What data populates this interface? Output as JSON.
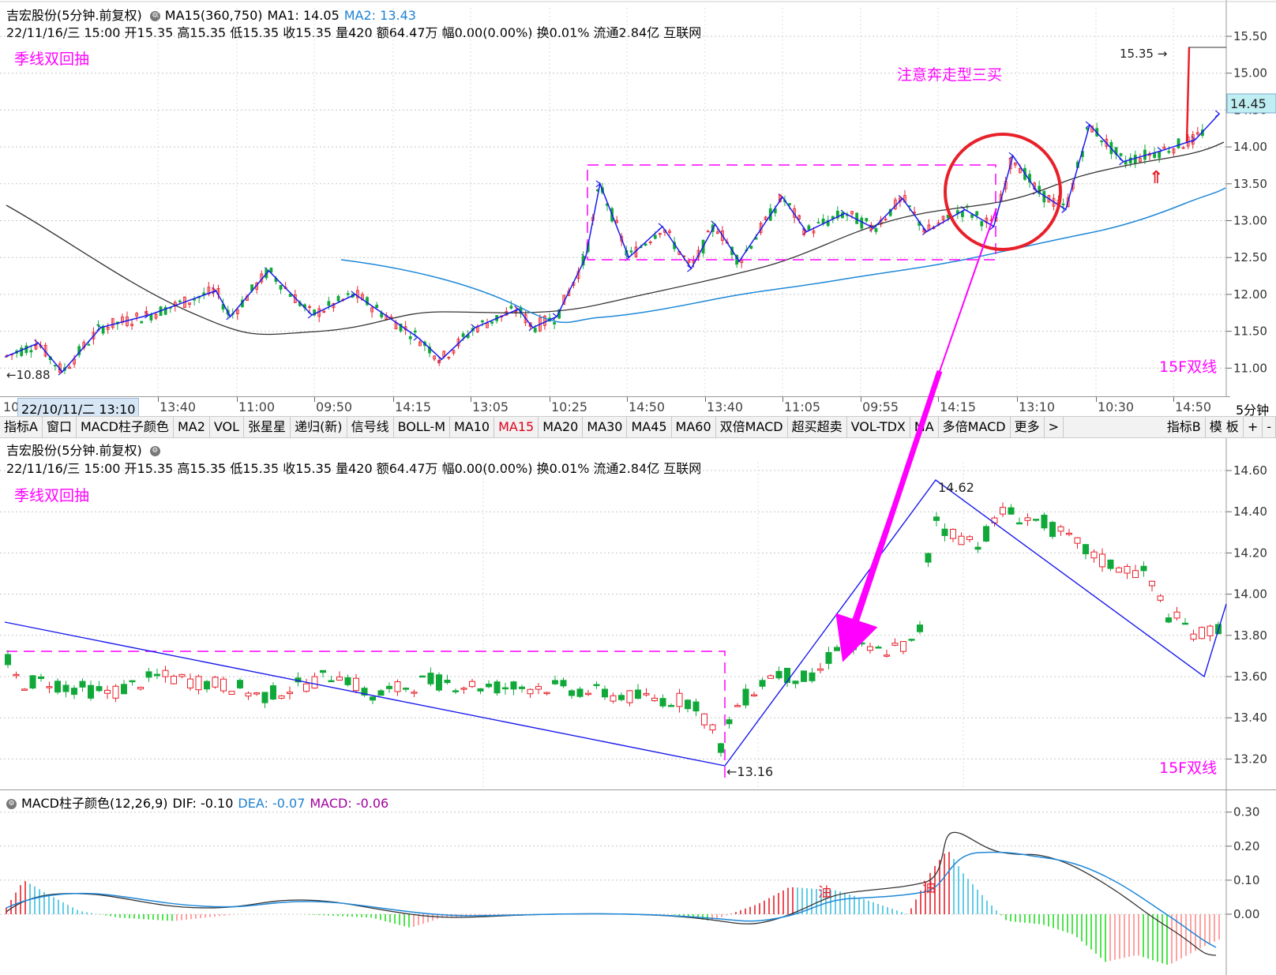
{
  "top_panel": {
    "header_line1": {
      "stock": "吉宏股份(5分钟.前复权)",
      "ma15": "MA15(360,750)",
      "ma1": "MA1: 14.05",
      "ma2": "MA2: 13.43"
    },
    "header_line2": "22/11/16/三 15:00 开15.35 高15.35 低15.35 收15.35 量420 额64.47万 幅0.00(0.00%) 换0.01% 流通2.84亿 互联网",
    "note_left": "季线双回抽",
    "note_top": "注意奔走型三买",
    "note_bottom": "15F双线",
    "price_labels": {
      "low": "10.88",
      "high": "15.35",
      "current": "14.45"
    },
    "y_ticks": [
      "15.50",
      "15.00",
      "14.50",
      "14.00",
      "13.50",
      "13.00",
      "12.50",
      "12.00",
      "11.50",
      "11.00"
    ]
  },
  "time_axis": {
    "selected": "22/10/11/二 13:10",
    "left_stub": "10",
    "labels": [
      "13:40",
      "11:00",
      "09:50",
      "14:15",
      "13:05",
      "10:25",
      "14:50",
      "13:40",
      "11:05",
      "09:55",
      "14:15",
      "13:10",
      "10:30",
      "14:50"
    ],
    "period": "5分钟"
  },
  "tabs": [
    "指标A",
    "窗口",
    "MACD柱子颜色",
    "MA2",
    "VOL",
    "张星星",
    "递归(新)",
    "信号线",
    "BOLL-M",
    "MA10",
    "MA15",
    "MA20",
    "MA30",
    "MA45",
    "MA60",
    "双倍MACD",
    "超买超卖",
    "VOL-TDX",
    "MA",
    "多倍MACD",
    "更多",
    ">",
    "指标B",
    "模 板",
    "+",
    "-"
  ],
  "active_tab": "MA15",
  "middle_panel": {
    "header_line1": "吉宏股份(5分钟.前复权)",
    "header_line2": "22/11/16/三 15:00 开15.35 高15.35 低15.35 收15.35 量420 额64.47万 幅0.00(0.00%) 换0.01% 流通2.84亿 互联网",
    "note_left": "季线双回抽",
    "note_bottom": "15F双线",
    "price_labels": {
      "low": "13.16",
      "high": "14.62"
    },
    "y_ticks": [
      "14.60",
      "14.40",
      "14.20",
      "14.00",
      "13.80",
      "13.60",
      "13.40",
      "13.20"
    ]
  },
  "macd_panel": {
    "title": "MACD柱子颜色(12,26,9)",
    "dif": "DIF: -0.10",
    "dea": "DEA: -0.07",
    "macd": "MACD: -0.06",
    "marks": [
      "油",
      "油"
    ],
    "y_ticks": [
      "0.30",
      "0.20",
      "0.10",
      "0.00"
    ]
  },
  "colors": {
    "up": "#e8202a",
    "down": "#11a83a",
    "ma_black": "#333333",
    "ma_blue": "#1e88d8",
    "stroke_blue": "#1a1aee",
    "annotation": "#ff00ff",
    "circle": "#e8202a"
  },
  "chart_data": [
    {
      "type": "line",
      "panel": "top",
      "title": "吉宏股份(5分钟.前复权)",
      "ylim": [
        10.6,
        15.7
      ],
      "series": [
        {
          "name": "price",
          "x": [
            0,
            7,
            12,
            20,
            30,
            44,
            47,
            55,
            64,
            73,
            86,
            91,
            98,
            107,
            110,
            115,
            121,
            124,
            130,
            137,
            143,
            148,
            153,
            162,
            167,
            175,
            181,
            187,
            192,
            200,
            206,
            210,
            215,
            221,
            226,
            233,
            241,
            248,
            253
          ],
          "values": [
            11.15,
            11.34,
            10.95,
            11.55,
            11.72,
            12.05,
            11.7,
            12.32,
            11.72,
            12.0,
            11.42,
            11.12,
            11.55,
            11.8,
            11.55,
            11.7,
            12.5,
            13.5,
            12.5,
            12.92,
            12.35,
            12.95,
            12.45,
            13.32,
            12.85,
            13.1,
            12.9,
            13.3,
            12.85,
            13.15,
            12.92,
            13.88,
            13.4,
            13.15,
            14.3,
            13.8,
            13.95,
            14.1,
            14.45
          ]
        },
        {
          "name": "MA1",
          "values_hint": "black moving average ending near 14.05"
        },
        {
          "name": "MA2",
          "values_hint": "blue moving average ending near 13.43"
        }
      ]
    },
    {
      "type": "bar",
      "panel": "macd",
      "title": "MACD柱子颜色(12,26,9)",
      "series": [
        {
          "name": "DIF",
          "last": -0.1
        },
        {
          "name": "DEA",
          "last": -0.07
        },
        {
          "name": "MACD",
          "last": -0.06
        }
      ],
      "ylim": [
        -0.1,
        0.3
      ]
    }
  ]
}
